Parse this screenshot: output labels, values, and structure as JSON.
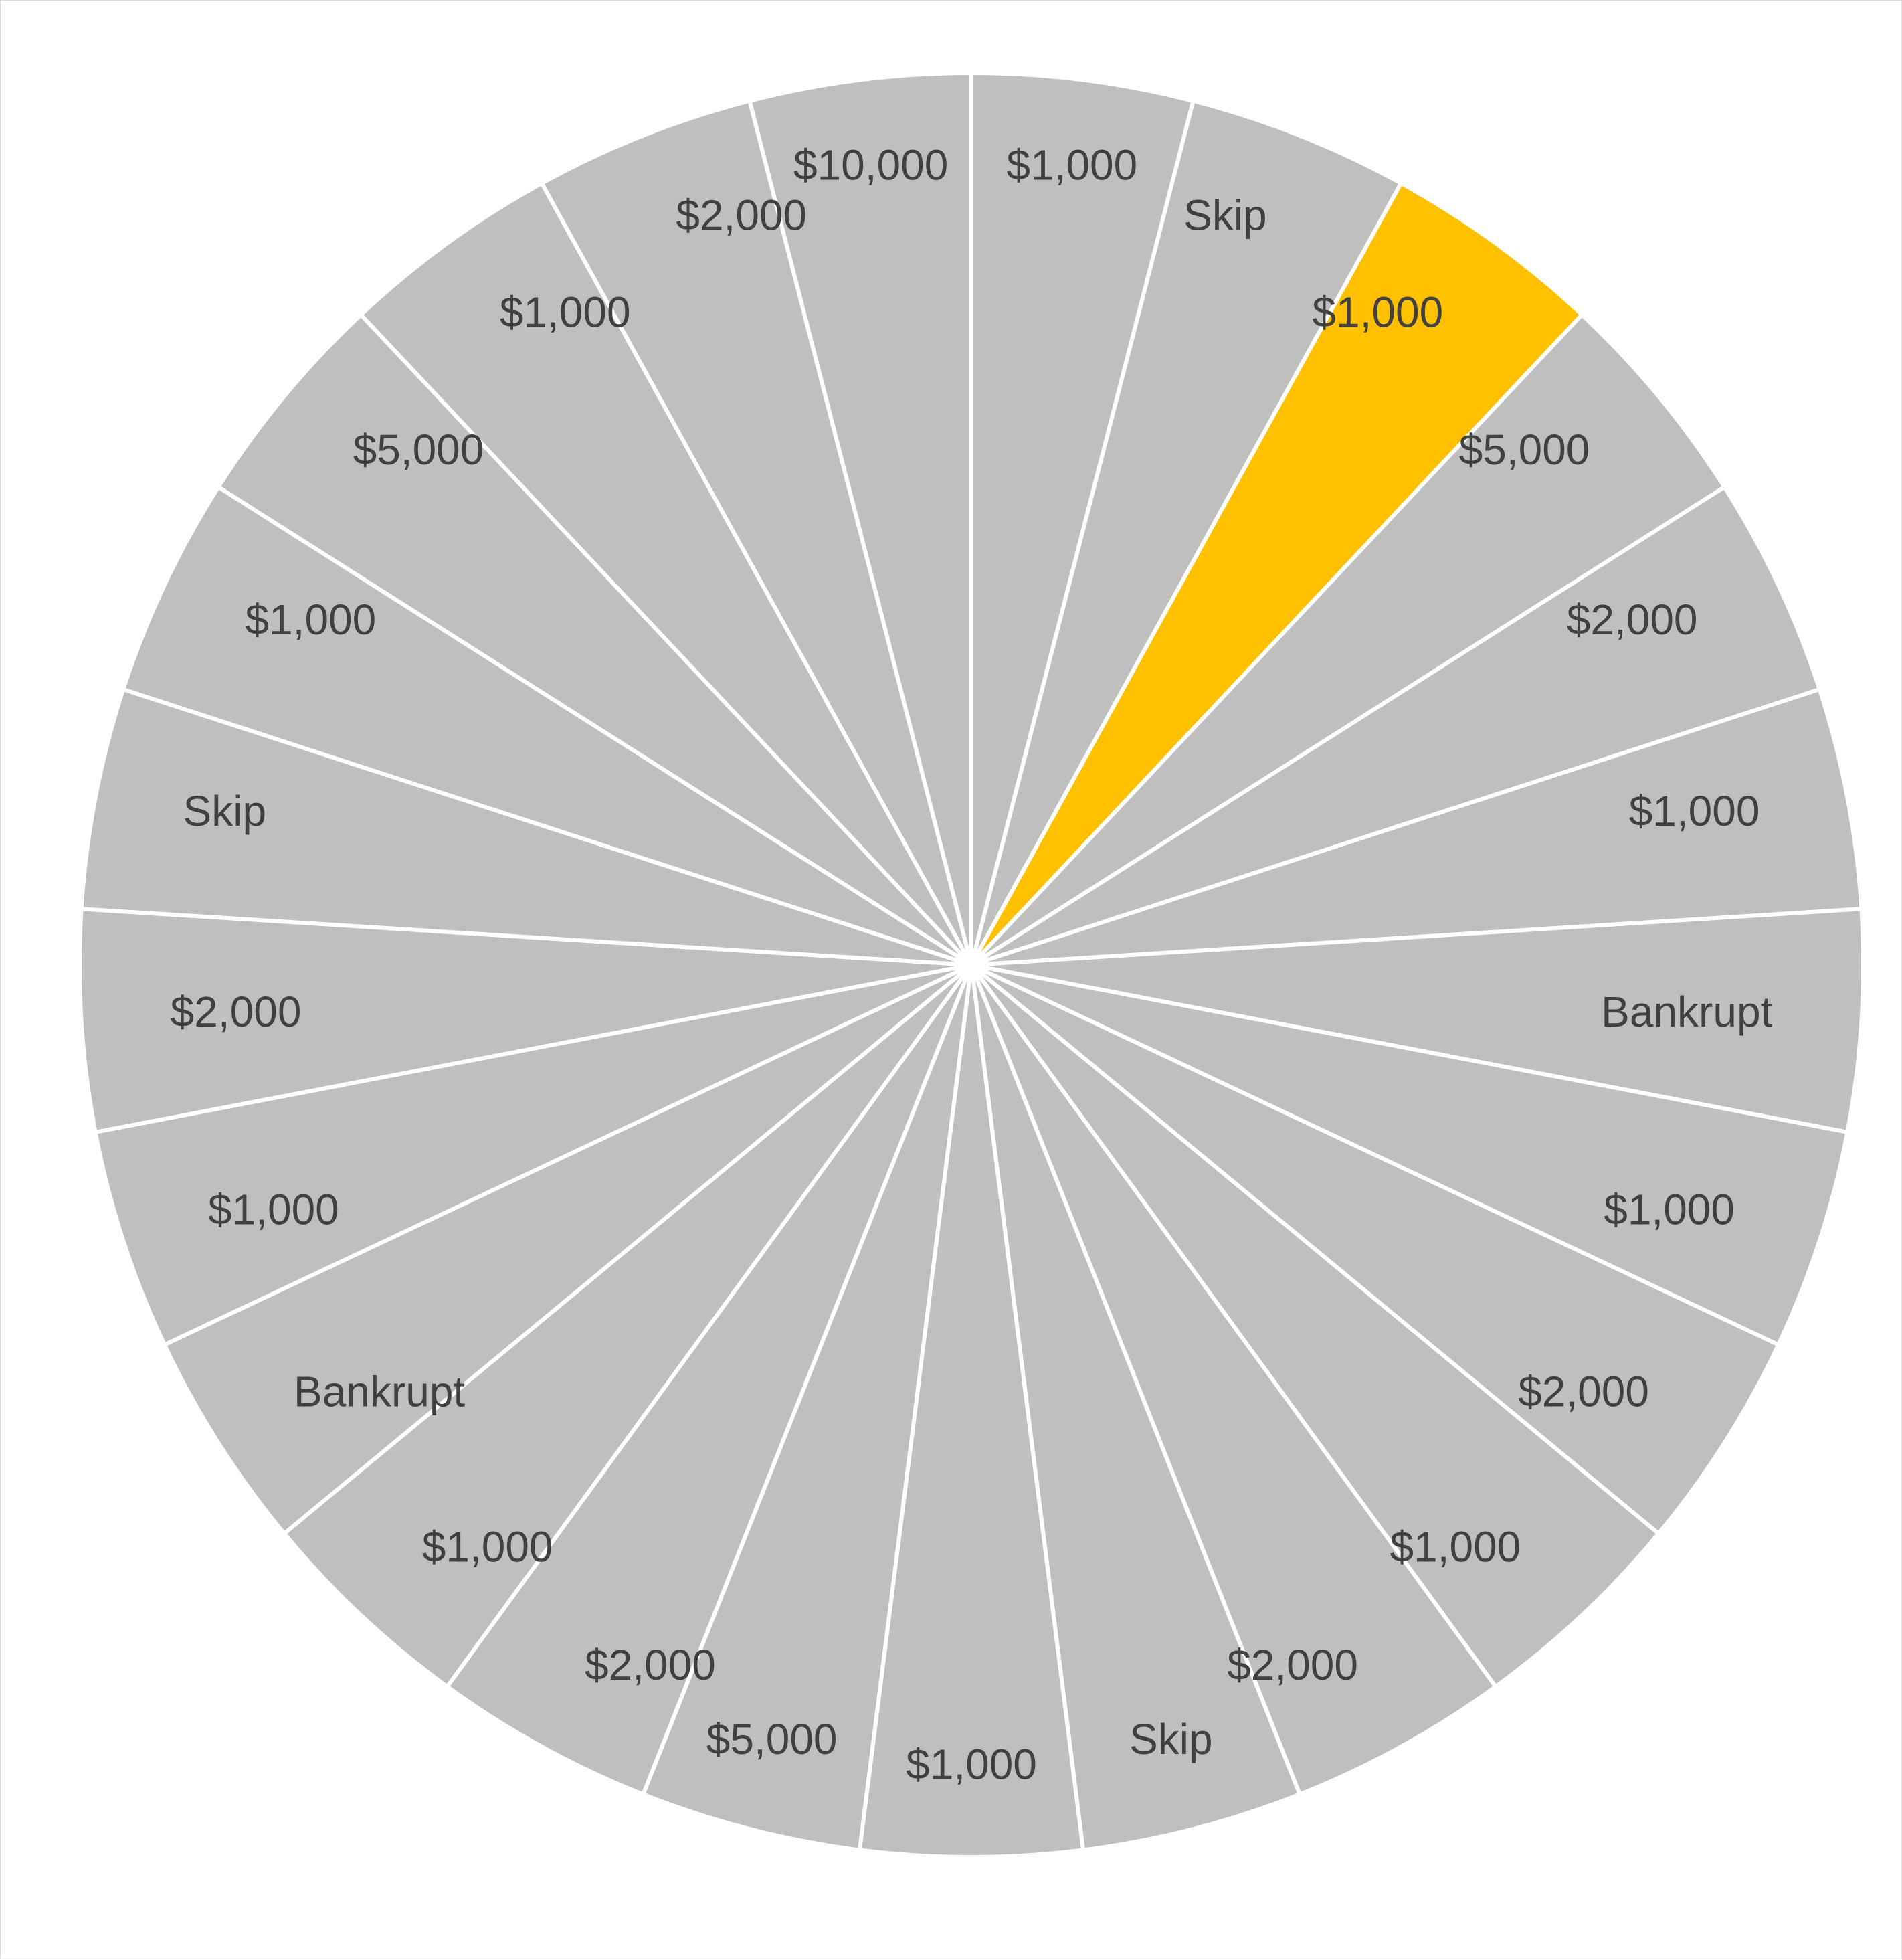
{
  "chart_data": {
    "type": "pie",
    "title": "",
    "start_angle_deg": 0,
    "direction": "clockwise",
    "slice_border_color": "#ffffff",
    "default_color": "#bfbfbf",
    "highlight_color": "#ffc000",
    "label_color": "#404040",
    "slices": [
      {
        "label": "$1,000",
        "value": 1,
        "highlight": false
      },
      {
        "label": "Skip",
        "value": 1,
        "highlight": false
      },
      {
        "label": "$1,000",
        "value": 1,
        "highlight": true
      },
      {
        "label": "$5,000",
        "value": 1,
        "highlight": false
      },
      {
        "label": "$2,000",
        "value": 1,
        "highlight": false
      },
      {
        "label": "$1,000",
        "value": 1,
        "highlight": false
      },
      {
        "label": "Bankrupt",
        "value": 1,
        "highlight": false
      },
      {
        "label": "$1,000",
        "value": 1,
        "highlight": false
      },
      {
        "label": "$2,000",
        "value": 1,
        "highlight": false
      },
      {
        "label": "$1,000",
        "value": 1,
        "highlight": false
      },
      {
        "label": "$2,000",
        "value": 1,
        "highlight": false
      },
      {
        "label": "Skip",
        "value": 1,
        "highlight": false
      },
      {
        "label": "$1,000",
        "value": 1,
        "highlight": false
      },
      {
        "label": "$5,000",
        "value": 1,
        "highlight": false
      },
      {
        "label": "$2,000",
        "value": 1,
        "highlight": false
      },
      {
        "label": "$1,000",
        "value": 1,
        "highlight": false
      },
      {
        "label": "Bankrupt",
        "value": 1,
        "highlight": false
      },
      {
        "label": "$1,000",
        "value": 1,
        "highlight": false
      },
      {
        "label": "$2,000",
        "value": 1,
        "highlight": false
      },
      {
        "label": "Skip",
        "value": 1,
        "highlight": false
      },
      {
        "label": "$1,000",
        "value": 1,
        "highlight": false
      },
      {
        "label": "$5,000",
        "value": 1,
        "highlight": false
      },
      {
        "label": "$1,000",
        "value": 1,
        "highlight": false
      },
      {
        "label": "$2,000",
        "value": 1,
        "highlight": false
      },
      {
        "label": "$10,000",
        "value": 1,
        "highlight": false
      }
    ]
  }
}
